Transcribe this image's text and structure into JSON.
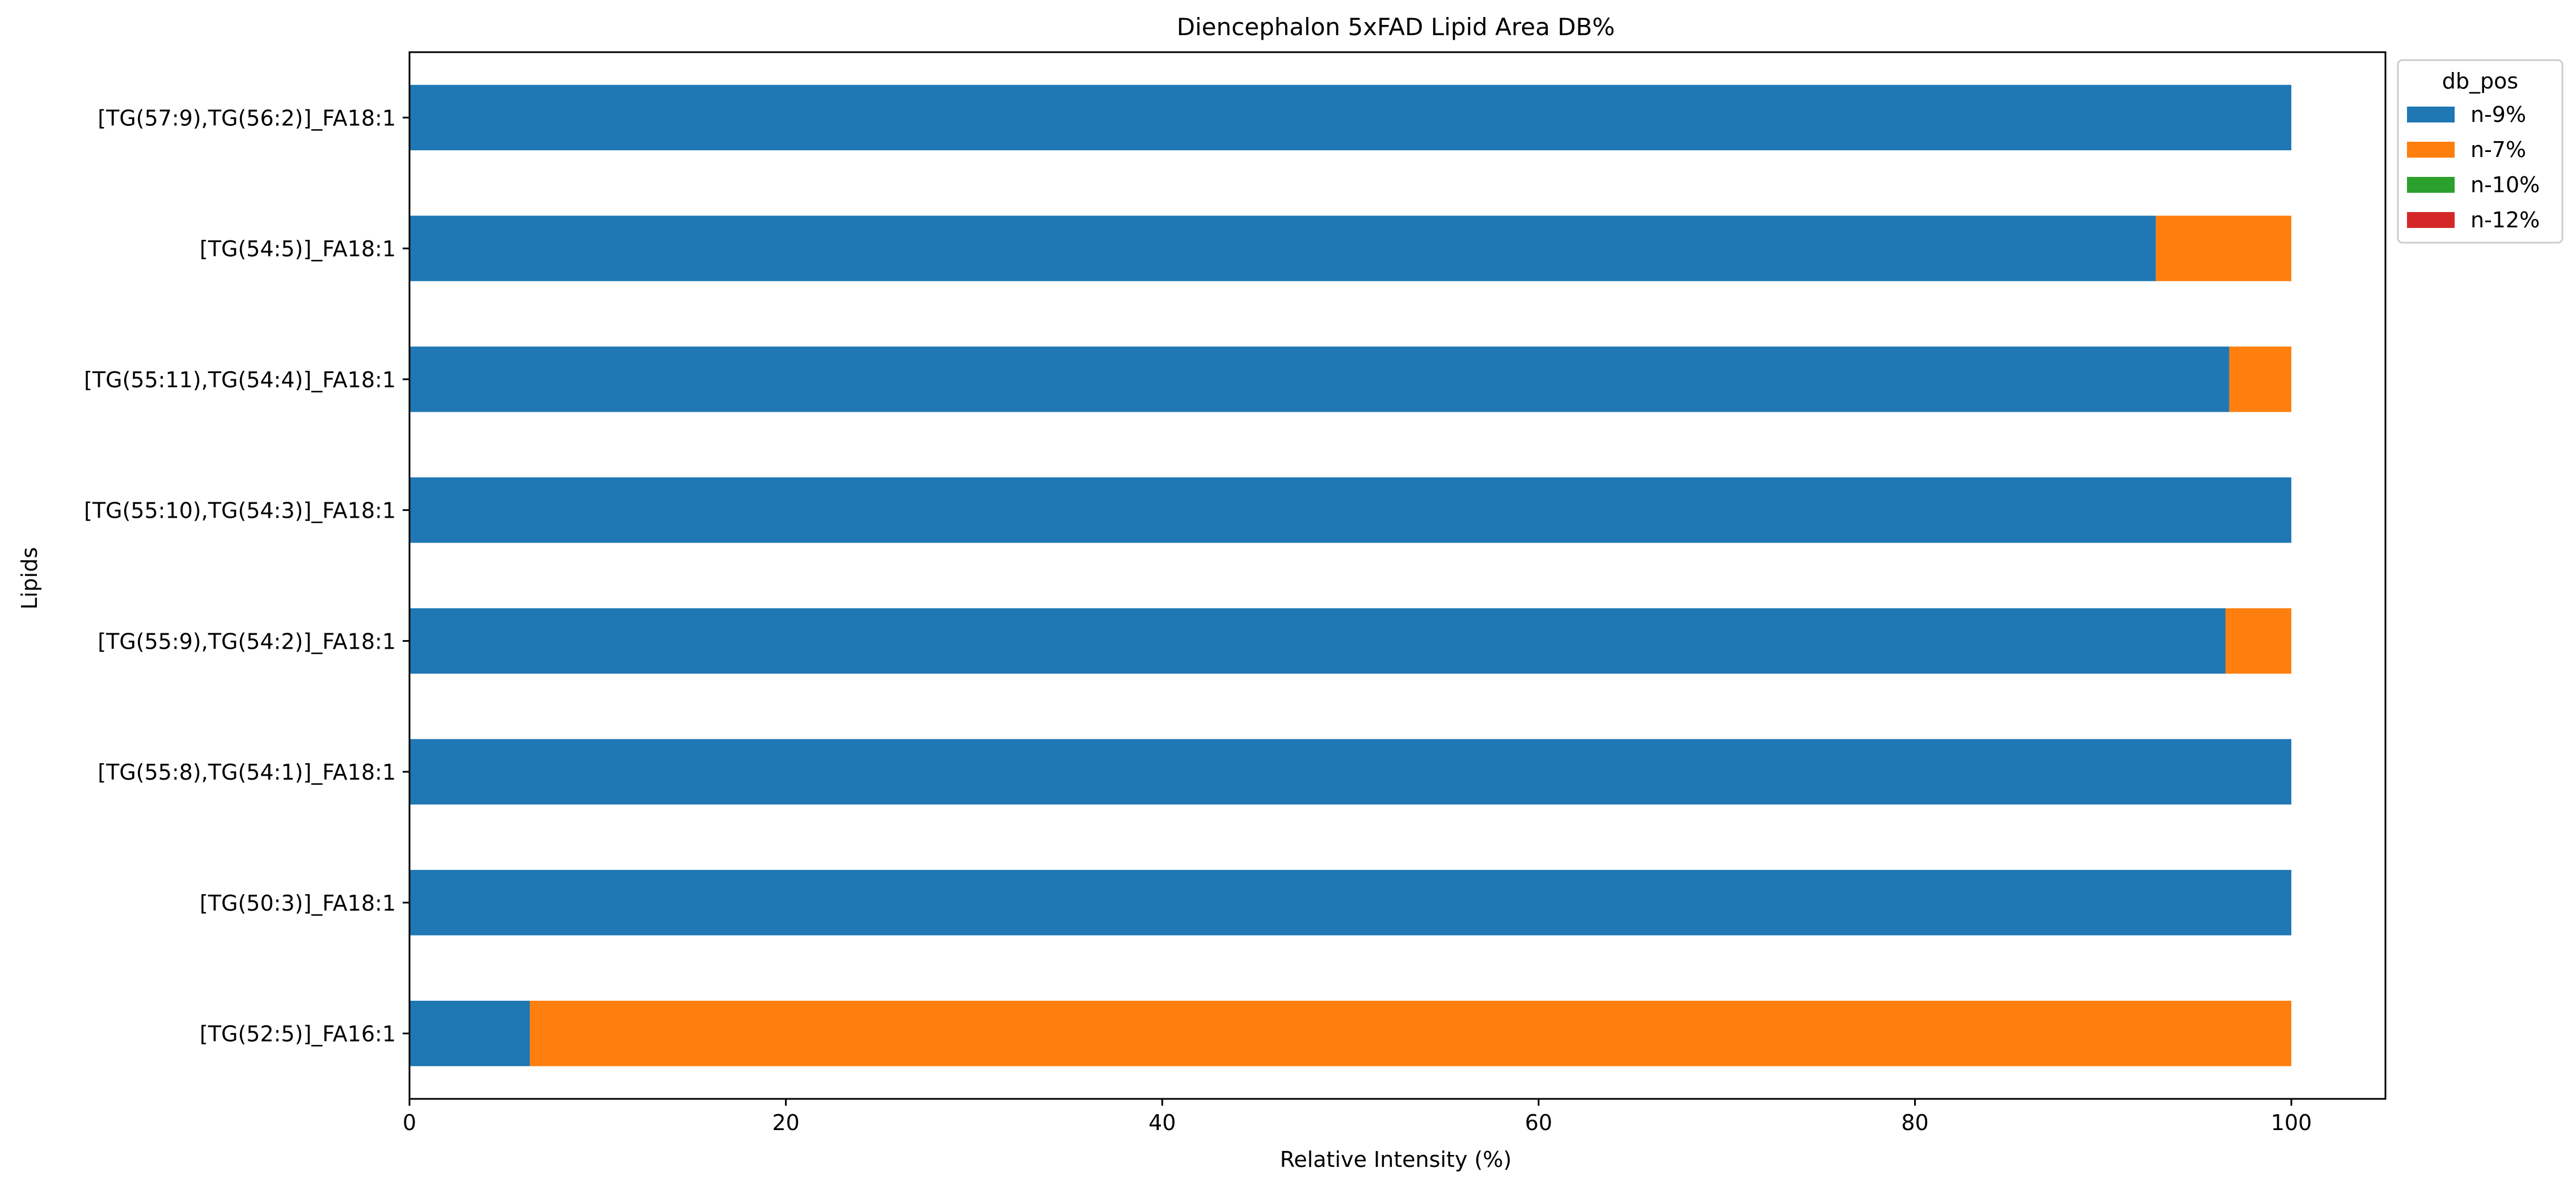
{
  "chart_data": {
    "type": "bar",
    "orientation": "horizontal",
    "stacked": true,
    "title": "Diencephalon 5xFAD Lipid Area DB%",
    "xlabel": "Relative Intensity (%)",
    "ylabel": "Lipids",
    "xlim": [
      0,
      105
    ],
    "xticks": [
      0,
      20,
      40,
      60,
      80,
      100
    ],
    "grid": false,
    "legend": {
      "title": "db_pos",
      "placement": "outside-upper-right"
    },
    "categories": [
      "[TG(52:5)]_FA16:1",
      "[TG(50:3)]_FA18:1",
      "[TG(55:8),TG(54:1)]_FA18:1",
      "[TG(55:9),TG(54:2)]_FA18:1",
      "[TG(55:10),TG(54:3)]_FA18:1",
      "[TG(55:11),TG(54:4)]_FA18:1",
      "[TG(54:5)]_FA18:1",
      "[TG(57:9),TG(56:2)]_FA18:1"
    ],
    "series": [
      {
        "name": "n-9%",
        "color": "#1f77b4",
        "values": [
          6.4,
          100,
          100,
          96.5,
          100,
          96.7,
          92.8,
          100
        ]
      },
      {
        "name": "n-7%",
        "color": "#ff7f0e",
        "values": [
          93.6,
          0,
          0,
          3.5,
          0,
          3.3,
          7.2,
          0
        ]
      },
      {
        "name": "n-10%",
        "color": "#2ca02c",
        "values": [
          0,
          0,
          0,
          0,
          0,
          0,
          0,
          0
        ]
      },
      {
        "name": "n-12%",
        "color": "#d62728",
        "values": [
          0,
          0,
          0,
          0,
          0,
          0,
          0,
          0
        ]
      }
    ]
  }
}
